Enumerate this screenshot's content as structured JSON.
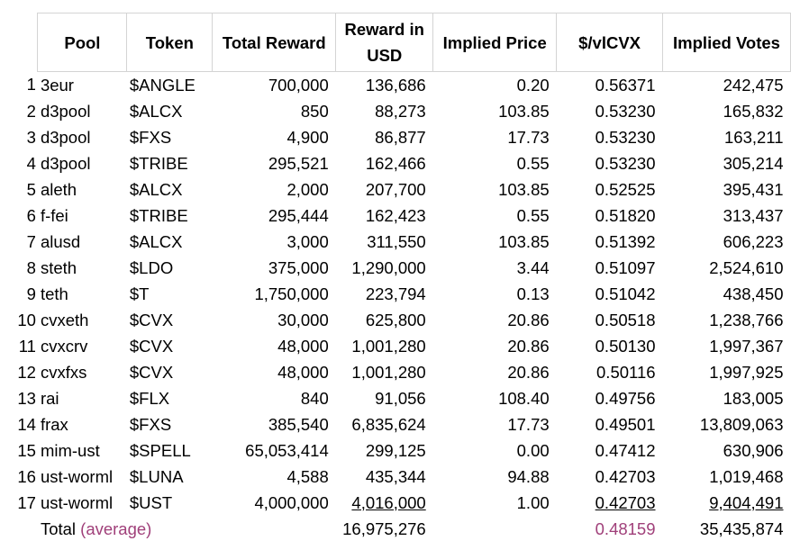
{
  "headers": {
    "pool": "Pool",
    "token": "Token",
    "total_reward": "Total Reward",
    "reward_usd_line1": "Reward in",
    "reward_usd_line2": "USD",
    "implied_price": "Implied Price",
    "per_vlcvx": "$/vlCVX",
    "implied_votes": "Implied Votes"
  },
  "rows": [
    {
      "n": "1",
      "pool": "3eur",
      "token": "$ANGLE",
      "total_reward": "700,000",
      "reward_usd": "136,686",
      "implied_price": "0.20",
      "per_vlcvx": "0.56371",
      "implied_votes": "242,475"
    },
    {
      "n": "2",
      "pool": "d3pool",
      "token": "$ALCX",
      "total_reward": "850",
      "reward_usd": "88,273",
      "implied_price": "103.85",
      "per_vlcvx": "0.53230",
      "implied_votes": "165,832"
    },
    {
      "n": "3",
      "pool": "d3pool",
      "token": "$FXS",
      "total_reward": "4,900",
      "reward_usd": "86,877",
      "implied_price": "17.73",
      "per_vlcvx": "0.53230",
      "implied_votes": "163,211"
    },
    {
      "n": "4",
      "pool": "d3pool",
      "token": "$TRIBE",
      "total_reward": "295,521",
      "reward_usd": "162,466",
      "implied_price": "0.55",
      "per_vlcvx": "0.53230",
      "implied_votes": "305,214"
    },
    {
      "n": "5",
      "pool": "aleth",
      "token": "$ALCX",
      "total_reward": "2,000",
      "reward_usd": "207,700",
      "implied_price": "103.85",
      "per_vlcvx": "0.52525",
      "implied_votes": "395,431"
    },
    {
      "n": "6",
      "pool": "f-fei",
      "token": "$TRIBE",
      "total_reward": "295,444",
      "reward_usd": "162,423",
      "implied_price": "0.55",
      "per_vlcvx": "0.51820",
      "implied_votes": "313,437"
    },
    {
      "n": "7",
      "pool": "alusd",
      "token": "$ALCX",
      "total_reward": "3,000",
      "reward_usd": "311,550",
      "implied_price": "103.85",
      "per_vlcvx": "0.51392",
      "implied_votes": "606,223"
    },
    {
      "n": "8",
      "pool": "steth",
      "token": "$LDO",
      "total_reward": "375,000",
      "reward_usd": "1,290,000",
      "implied_price": "3.44",
      "per_vlcvx": "0.51097",
      "implied_votes": "2,524,610"
    },
    {
      "n": "9",
      "pool": "teth",
      "token": "$T",
      "total_reward": "1,750,000",
      "reward_usd": "223,794",
      "implied_price": "0.13",
      "per_vlcvx": "0.51042",
      "implied_votes": "438,450"
    },
    {
      "n": "10",
      "pool": "cvxeth",
      "token": "$CVX",
      "total_reward": "30,000",
      "reward_usd": "625,800",
      "implied_price": "20.86",
      "per_vlcvx": "0.50518",
      "implied_votes": "1,238,766"
    },
    {
      "n": "11",
      "pool": "cvxcrv",
      "token": "$CVX",
      "total_reward": "48,000",
      "reward_usd": "1,001,280",
      "implied_price": "20.86",
      "per_vlcvx": "0.50130",
      "implied_votes": "1,997,367"
    },
    {
      "n": "12",
      "pool": "cvxfxs",
      "token": "$CVX",
      "total_reward": "48,000",
      "reward_usd": "1,001,280",
      "implied_price": "20.86",
      "per_vlcvx": "0.50116",
      "implied_votes": "1,997,925"
    },
    {
      "n": "13",
      "pool": "rai",
      "token": "$FLX",
      "total_reward": "840",
      "reward_usd": "91,056",
      "implied_price": "108.40",
      "per_vlcvx": "0.49756",
      "implied_votes": "183,005"
    },
    {
      "n": "14",
      "pool": "frax",
      "token": "$FXS",
      "total_reward": "385,540",
      "reward_usd": "6,835,624",
      "implied_price": "17.73",
      "per_vlcvx": "0.49501",
      "implied_votes": "13,809,063"
    },
    {
      "n": "15",
      "pool": "mim-ust",
      "token": "$SPELL",
      "total_reward": "65,053,414",
      "reward_usd": "299,125",
      "implied_price": "0.00",
      "per_vlcvx": "0.47412",
      "implied_votes": "630,906"
    },
    {
      "n": "16",
      "pool": "ust-worml",
      "token": "$LUNA",
      "total_reward": "4,588",
      "reward_usd": "435,344",
      "implied_price": "94.88",
      "per_vlcvx": "0.42703",
      "implied_votes": "1,019,468"
    },
    {
      "n": "17",
      "pool": "ust-worml",
      "token": "$UST",
      "total_reward": "4,000,000",
      "reward_usd": "4,016,000",
      "implied_price": "1.00",
      "per_vlcvx": "0.42703",
      "implied_votes": "9,404,491"
    }
  ],
  "total": {
    "label": "Total",
    "avg_label": "(average)",
    "reward_usd": "16,975,276",
    "per_vlcvx": "0.48159",
    "implied_votes": "35,435,874"
  },
  "colors": {
    "average_accent": "#a0407a",
    "gridline": "#d4d4d4"
  }
}
